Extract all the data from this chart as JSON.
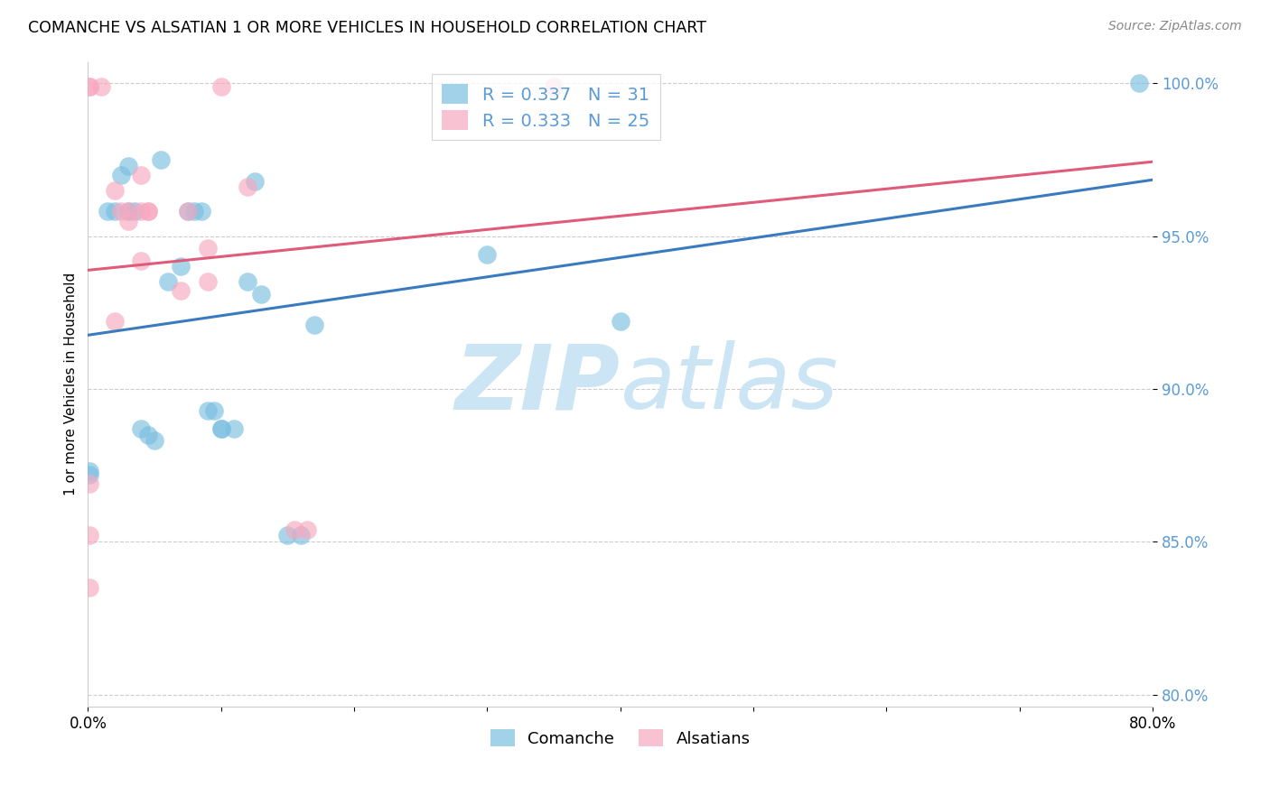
{
  "title": "COMANCHE VS ALSATIAN 1 OR MORE VEHICLES IN HOUSEHOLD CORRELATION CHART",
  "source": "Source: ZipAtlas.com",
  "ylabel": "1 or more Vehicles in Household",
  "xlim_pct": [
    0.0,
    0.8
  ],
  "ylim_pct": [
    0.8,
    1.005
  ],
  "yticks": [
    0.8,
    0.85,
    0.9,
    0.95,
    1.0
  ],
  "ytick_labels": [
    "80.0%",
    "85.0%",
    "90.0%",
    "95.0%",
    "100.0%"
  ],
  "xticks": [
    0.0,
    0.1,
    0.2,
    0.3,
    0.4,
    0.5,
    0.6,
    0.7,
    0.8
  ],
  "xtick_labels": [
    "0.0%",
    "",
    "",
    "",
    "",
    "",
    "",
    "",
    "80.0%"
  ],
  "comanche_R": 0.337,
  "comanche_N": 31,
  "alsatian_R": 0.333,
  "alsatian_N": 25,
  "comanche_color": "#7abfe0",
  "alsatian_color": "#f7a8c0",
  "comanche_line_color": "#3a7abf",
  "alsatian_line_color": "#e05a7a",
  "tick_color": "#5b9bd5",
  "watermark_color": "#cce5f5",
  "comanche_x": [
    0.001,
    0.015,
    0.02,
    0.025,
    0.03,
    0.03,
    0.035,
    0.04,
    0.045,
    0.05,
    0.055,
    0.06,
    0.07,
    0.075,
    0.08,
    0.085,
    0.09,
    0.095,
    0.1,
    0.1,
    0.11,
    0.12,
    0.125,
    0.13,
    0.15,
    0.16,
    0.17,
    0.3,
    0.4,
    0.79,
    0.001
  ],
  "comanche_y": [
    0.872,
    0.958,
    0.958,
    0.97,
    0.973,
    0.958,
    0.958,
    0.887,
    0.885,
    0.883,
    0.975,
    0.935,
    0.94,
    0.958,
    0.958,
    0.958,
    0.893,
    0.893,
    0.887,
    0.887,
    0.887,
    0.935,
    0.968,
    0.931,
    0.852,
    0.852,
    0.921,
    0.944,
    0.922,
    1.0,
    0.873
  ],
  "alsatian_x": [
    0.001,
    0.001,
    0.01,
    0.02,
    0.02,
    0.025,
    0.03,
    0.03,
    0.04,
    0.04,
    0.04,
    0.045,
    0.045,
    0.07,
    0.075,
    0.09,
    0.09,
    0.1,
    0.12,
    0.155,
    0.165,
    0.35,
    0.001,
    0.001,
    0.001
  ],
  "alsatian_y": [
    0.999,
    0.999,
    0.999,
    0.965,
    0.922,
    0.958,
    0.958,
    0.955,
    0.942,
    0.958,
    0.97,
    0.958,
    0.958,
    0.932,
    0.958,
    0.946,
    0.935,
    0.999,
    0.966,
    0.854,
    0.854,
    0.999,
    0.869,
    0.852,
    0.835
  ]
}
